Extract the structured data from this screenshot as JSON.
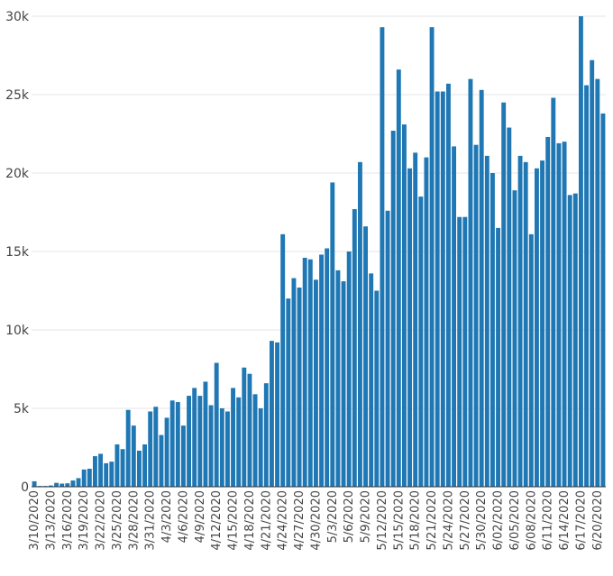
{
  "chart_data": {
    "type": "bar",
    "title": "",
    "xlabel": "",
    "ylabel": "",
    "ylim": [
      0,
      30000
    ],
    "grid": true,
    "legend": "none",
    "bar_color": "#1f77b4",
    "yticks": [
      0,
      5000,
      10000,
      15000,
      20000,
      25000,
      30000
    ],
    "ytick_labels": [
      "0",
      "5k",
      "10k",
      "15k",
      "20k",
      "25k",
      "30k"
    ],
    "xtick_labels": [
      "3/10/2020",
      "3/13/2020",
      "3/16/2020",
      "3/19/2020",
      "3/22/2020",
      "3/25/2020",
      "3/28/2020",
      "3/31/2020",
      "4/3/2020",
      "4/6/2020",
      "4/9/2020",
      "4/12/2020",
      "4/15/2020",
      "4/18/2020",
      "4/21/2020",
      "4/24/2020",
      "4/27/2020",
      "4/30/2020",
      "5/3/2020",
      "5/6/2020",
      "5/9/2020",
      "5/12/2020",
      "5/15/2020",
      "5/18/2020",
      "5/21/2020",
      "5/24/2020",
      "5/27/2020",
      "5/30/2020",
      "6/02/2020",
      "6/05/2020",
      "6/08/2020",
      "6/11/2020",
      "6/14/2020",
      "6/17/2020",
      "6/20/2020"
    ],
    "start_date": "2020-03-10",
    "values": [
      350,
      50,
      50,
      80,
      250,
      200,
      220,
      400,
      550,
      1100,
      1150,
      1950,
      2100,
      1500,
      1600,
      2700,
      2400,
      4900,
      3900,
      2300,
      2700,
      4800,
      5100,
      3300,
      4400,
      5500,
      5400,
      3900,
      5800,
      6300,
      5800,
      6700,
      5200,
      7900,
      5000,
      4800,
      6300,
      5700,
      7600,
      7200,
      5900,
      5000,
      6600,
      9300,
      9200,
      16100,
      12000,
      13300,
      12700,
      14600,
      14500,
      13200,
      14800,
      15200,
      19400,
      13800,
      13100,
      15000,
      17700,
      20700,
      16600,
      13600,
      12500,
      29300,
      17600,
      22700,
      26600,
      23100,
      20300,
      21300,
      18500,
      21000,
      29300,
      25200,
      25200,
      25700,
      21700,
      17200,
      17200,
      26000,
      21800,
      25300,
      21100,
      20000,
      16500,
      24500,
      22900,
      18900,
      21100,
      20700,
      16100,
      20300,
      20800,
      22300,
      24800,
      21900,
      22000,
      18600,
      18700,
      30000,
      25600,
      27200,
      26000,
      23800
    ]
  }
}
